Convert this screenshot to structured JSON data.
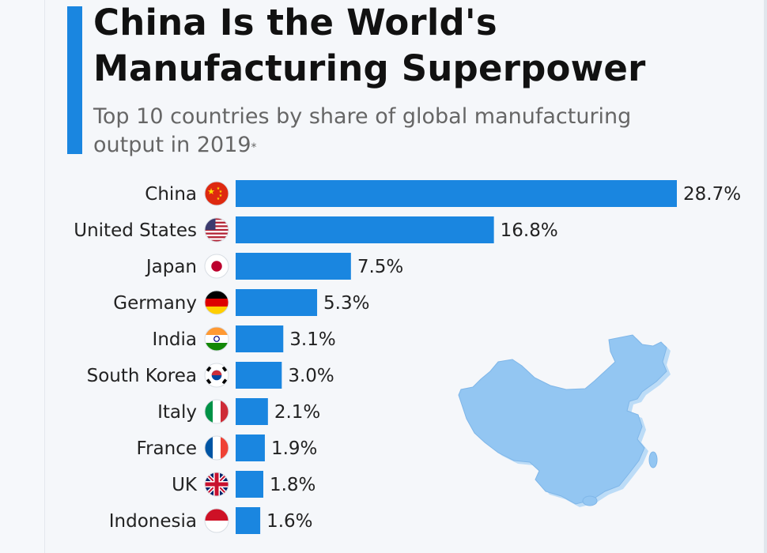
{
  "header": {
    "title_line1": "China Is the World's",
    "title_line2": "Manufacturing Superpower",
    "subtitle": "Top 10 countries by share of global manufacturing output in 2019",
    "footnote_marker": "*"
  },
  "colors": {
    "accent": "#1a86e0",
    "map_fill": "#93c6f2",
    "map_shadow": "#bcdcf7"
  },
  "chart_data": {
    "type": "bar",
    "orientation": "horizontal",
    "title": "China Is the World's Manufacturing Superpower",
    "subtitle": "Top 10 countries by share of global manufacturing output in 2019*",
    "xlabel": "",
    "ylabel": "",
    "unit": "%",
    "xlim": [
      0,
      28.7
    ],
    "grid": false,
    "legend": "none",
    "categories": [
      "China",
      "United States",
      "Japan",
      "Germany",
      "India",
      "South Korea",
      "Italy",
      "France",
      "UK",
      "Indonesia"
    ],
    "values": [
      28.7,
      16.8,
      7.5,
      5.3,
      3.1,
      3.0,
      2.1,
      1.9,
      1.8,
      1.6
    ],
    "value_labels": [
      "28.7%",
      "16.8%",
      "7.5%",
      "5.3%",
      "3.1%",
      "3.0%",
      "2.1%",
      "1.9%",
      "1.8%",
      "1.6%"
    ],
    "flag_icons": [
      "china-flag-icon",
      "usa-flag-icon",
      "japan-flag-icon",
      "germany-flag-icon",
      "india-flag-icon",
      "south-korea-flag-icon",
      "italy-flag-icon",
      "france-flag-icon",
      "uk-flag-icon",
      "indonesia-flag-icon"
    ]
  },
  "decoration": {
    "map_icon": "china-map-icon"
  }
}
